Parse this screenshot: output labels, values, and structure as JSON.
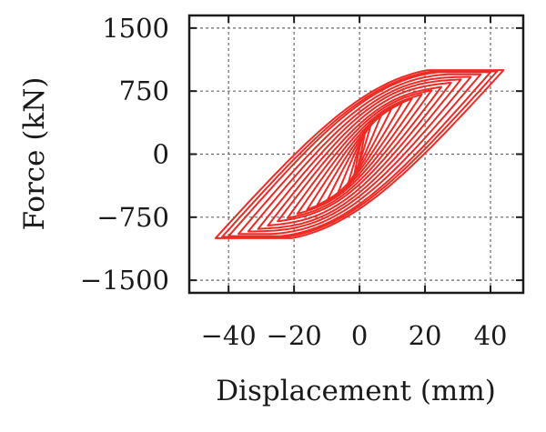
{
  "chart_data": {
    "type": "line",
    "title": "",
    "xlabel": "Displacement (mm)",
    "ylabel": "Force (kN)",
    "xlim": [
      -52,
      50
    ],
    "ylim": [
      -1650,
      1650
    ],
    "xticks": [
      -40,
      -20,
      0,
      20,
      40
    ],
    "xtick_labels": [
      "−40",
      "−20",
      "0",
      "20",
      "40"
    ],
    "yticks": [
      1500,
      750,
      0,
      -750,
      -1500
    ],
    "ytick_labels": [
      "1500",
      "750",
      "0",
      "−750",
      "−1500"
    ],
    "grid": true,
    "series_color": "#ee2a24",
    "loops": [
      {
        "amplitude_mm": 2,
        "peak_force_kN": 320
      },
      {
        "amplitude_mm": 4,
        "peak_force_kN": 420
      },
      {
        "amplitude_mm": 7,
        "peak_force_kN": 500
      },
      {
        "amplitude_mm": 10,
        "peak_force_kN": 560
      },
      {
        "amplitude_mm": 13,
        "peak_force_kN": 610
      },
      {
        "amplitude_mm": 16,
        "peak_force_kN": 660
      },
      {
        "amplitude_mm": 19,
        "peak_force_kN": 710
      },
      {
        "amplitude_mm": 22,
        "peak_force_kN": 760
      },
      {
        "amplitude_mm": 25,
        "peak_force_kN": 800
      },
      {
        "amplitude_mm": 28,
        "peak_force_kN": 850
      },
      {
        "amplitude_mm": 31,
        "peak_force_kN": 890
      },
      {
        "amplitude_mm": 34,
        "peak_force_kN": 920
      },
      {
        "amplitude_mm": 37,
        "peak_force_kN": 950
      },
      {
        "amplitude_mm": 40,
        "peak_force_kN": 975
      },
      {
        "amplitude_mm": 42,
        "peak_force_kN": 985
      },
      {
        "amplitude_mm": 44,
        "peak_force_kN": 1000
      }
    ]
  }
}
